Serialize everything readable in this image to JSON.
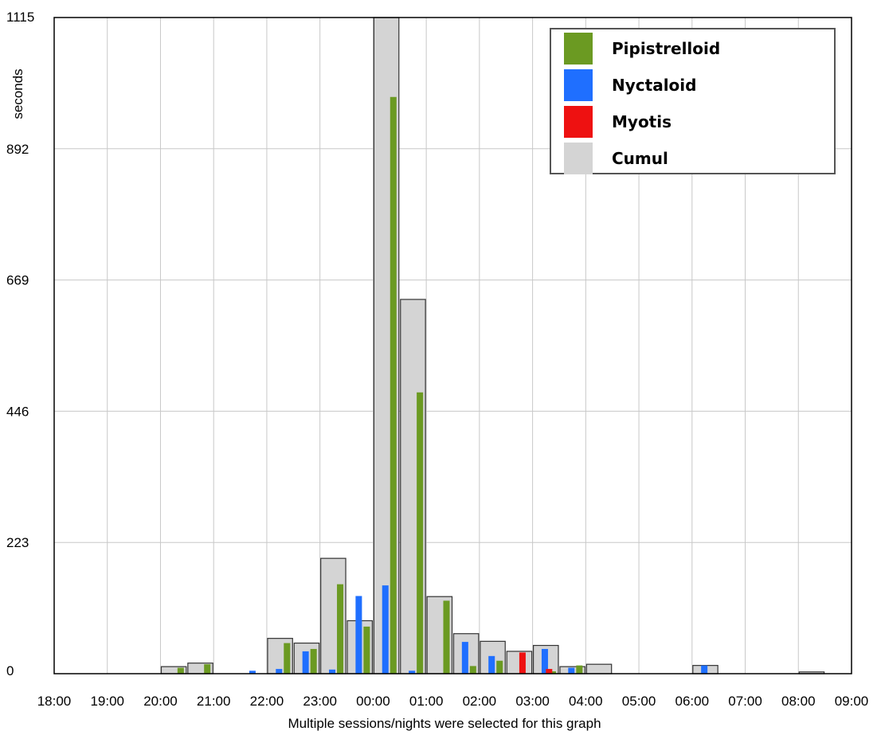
{
  "chart_data": {
    "type": "bar",
    "ylabel": "seconds",
    "caption": "Multiple sessions/nights were selected for this graph",
    "ylim": [
      0,
      1115
    ],
    "y_ticks": [
      "0",
      "223",
      "446",
      "669",
      "892",
      "1115"
    ],
    "x_tick_labels": [
      "18:00",
      "19:00",
      "20:00",
      "21:00",
      "22:00",
      "23:00",
      "00:00",
      "01:00",
      "02:00",
      "03:00",
      "04:00",
      "05:00",
      "06:00",
      "07:00",
      "08:00",
      "09:00"
    ],
    "grid": true,
    "legend_position": "top-right",
    "categories": [
      "18:00",
      "18:30",
      "19:00",
      "19:30",
      "20:00",
      "20:30",
      "21:00",
      "21:30",
      "22:00",
      "22:30",
      "23:00",
      "23:30",
      "00:00",
      "00:30",
      "01:00",
      "01:30",
      "02:00",
      "02:30",
      "03:00",
      "03:30",
      "04:00",
      "04:30",
      "05:00",
      "05:30",
      "06:00",
      "06:30",
      "07:00",
      "07:30",
      "08:00",
      "08:30"
    ],
    "series": [
      {
        "name": "Pipistrelloid",
        "color": "#6b9a22",
        "values": [
          0,
          0,
          0,
          0,
          10,
          16,
          0,
          0,
          52,
          42,
          152,
          80,
          980,
          478,
          124,
          13,
          22,
          0,
          4,
          14,
          0,
          0,
          0,
          0,
          0,
          0,
          0,
          0,
          0,
          0
        ]
      },
      {
        "name": "Nyctaloid",
        "color": "#1f6fff",
        "values": [
          0,
          0,
          0,
          0,
          0,
          0,
          0,
          5,
          8,
          38,
          7,
          132,
          150,
          5,
          0,
          54,
          30,
          0,
          42,
          10,
          0,
          0,
          0,
          0,
          14,
          0,
          0,
          0,
          0,
          0
        ]
      },
      {
        "name": "Myotis",
        "color": "#ee1111",
        "values": [
          0,
          0,
          0,
          0,
          0,
          0,
          0,
          0,
          0,
          0,
          0,
          0,
          0,
          0,
          0,
          0,
          0,
          36,
          8,
          0,
          0,
          0,
          0,
          0,
          0,
          0,
          0,
          0,
          0,
          0
        ]
      },
      {
        "name": "Cumul",
        "color": "#d4d4d4",
        "values": [
          0,
          0,
          0,
          0,
          12,
          18,
          0,
          0,
          60,
          52,
          196,
          90,
          1115,
          636,
          131,
          68,
          55,
          38,
          48,
          12,
          16,
          0,
          0,
          0,
          14,
          0,
          0,
          0,
          3,
          0
        ]
      }
    ]
  }
}
